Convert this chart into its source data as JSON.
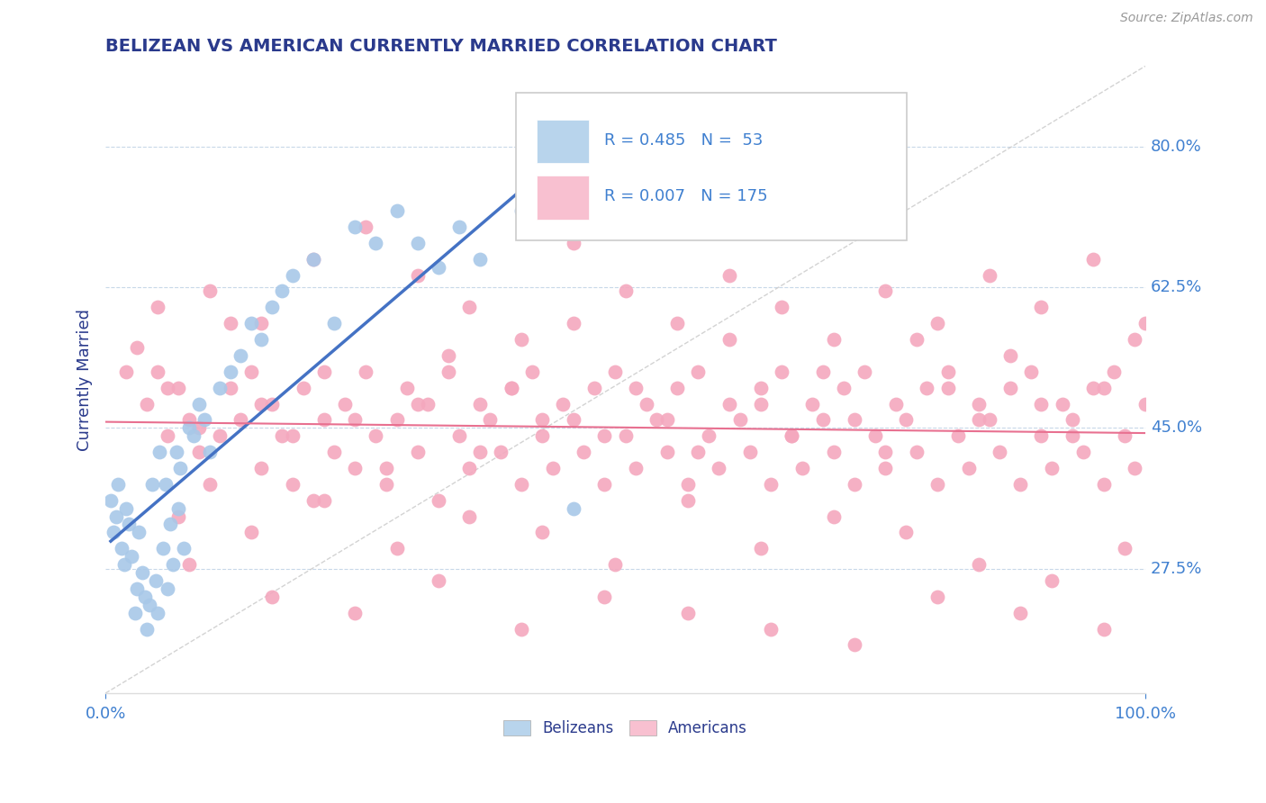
{
  "title": "BELIZEAN VS AMERICAN CURRENTLY MARRIED CORRELATION CHART",
  "source_text": "Source: ZipAtlas.com",
  "ylabel": "Currently Married",
  "x_min": 0.0,
  "x_max": 1.0,
  "y_min": 0.12,
  "y_max": 0.9,
  "yticks": [
    0.275,
    0.45,
    0.625,
    0.8
  ],
  "ytick_labels": [
    "27.5%",
    "45.0%",
    "62.5%",
    "80.0%"
  ],
  "legend_r1": "R = 0.485",
  "legend_n1": "N =  53",
  "legend_r2": "R = 0.007",
  "legend_n2": "N = 175",
  "blue_scatter_color": "#a8c8e8",
  "pink_scatter_color": "#f4a8be",
  "blue_fill": "#b8d4ec",
  "pink_fill": "#f8c0d0",
  "blue_line_color": "#4472c4",
  "pink_line_color": "#e87090",
  "ref_line_color": "#c8c8c8",
  "title_color": "#2a3a8c",
  "tick_color": "#4080d0",
  "ylabel_color": "#2a3a8c",
  "bg_color": "#ffffff",
  "grid_color": "#c8d8e8",
  "belizean_x": [
    0.005,
    0.008,
    0.01,
    0.012,
    0.015,
    0.018,
    0.02,
    0.022,
    0.025,
    0.028,
    0.03,
    0.032,
    0.035,
    0.038,
    0.04,
    0.042,
    0.045,
    0.048,
    0.05,
    0.052,
    0.055,
    0.058,
    0.06,
    0.062,
    0.065,
    0.068,
    0.07,
    0.072,
    0.075,
    0.08,
    0.085,
    0.09,
    0.095,
    0.1,
    0.11,
    0.12,
    0.13,
    0.14,
    0.15,
    0.16,
    0.17,
    0.18,
    0.2,
    0.22,
    0.24,
    0.26,
    0.28,
    0.3,
    0.32,
    0.34,
    0.36,
    0.4,
    0.45
  ],
  "belizean_y": [
    0.36,
    0.32,
    0.34,
    0.38,
    0.3,
    0.28,
    0.35,
    0.33,
    0.29,
    0.22,
    0.25,
    0.32,
    0.27,
    0.24,
    0.2,
    0.23,
    0.38,
    0.26,
    0.22,
    0.42,
    0.3,
    0.38,
    0.25,
    0.33,
    0.28,
    0.42,
    0.35,
    0.4,
    0.3,
    0.45,
    0.44,
    0.48,
    0.46,
    0.42,
    0.5,
    0.52,
    0.54,
    0.58,
    0.56,
    0.6,
    0.62,
    0.64,
    0.66,
    0.58,
    0.7,
    0.68,
    0.72,
    0.68,
    0.65,
    0.7,
    0.66,
    0.72,
    0.35
  ],
  "american_x": [
    0.02,
    0.04,
    0.05,
    0.06,
    0.07,
    0.08,
    0.09,
    0.1,
    0.11,
    0.12,
    0.13,
    0.14,
    0.15,
    0.16,
    0.17,
    0.18,
    0.19,
    0.2,
    0.21,
    0.22,
    0.23,
    0.24,
    0.25,
    0.26,
    0.27,
    0.28,
    0.29,
    0.3,
    0.31,
    0.32,
    0.33,
    0.34,
    0.35,
    0.36,
    0.37,
    0.38,
    0.39,
    0.4,
    0.41,
    0.42,
    0.43,
    0.44,
    0.45,
    0.46,
    0.47,
    0.48,
    0.49,
    0.5,
    0.51,
    0.52,
    0.53,
    0.54,
    0.55,
    0.56,
    0.57,
    0.58,
    0.59,
    0.6,
    0.61,
    0.62,
    0.63,
    0.64,
    0.65,
    0.66,
    0.67,
    0.68,
    0.69,
    0.7,
    0.71,
    0.72,
    0.73,
    0.74,
    0.75,
    0.76,
    0.77,
    0.78,
    0.79,
    0.8,
    0.81,
    0.82,
    0.83,
    0.84,
    0.85,
    0.86,
    0.87,
    0.88,
    0.89,
    0.9,
    0.91,
    0.92,
    0.93,
    0.94,
    0.95,
    0.96,
    0.97,
    0.98,
    0.99,
    1.0,
    0.03,
    0.06,
    0.09,
    0.12,
    0.15,
    0.18,
    0.21,
    0.24,
    0.27,
    0.3,
    0.33,
    0.36,
    0.39,
    0.42,
    0.45,
    0.48,
    0.51,
    0.54,
    0.57,
    0.6,
    0.63,
    0.66,
    0.69,
    0.72,
    0.75,
    0.78,
    0.81,
    0.84,
    0.87,
    0.9,
    0.93,
    0.96,
    0.99,
    0.05,
    0.1,
    0.15,
    0.2,
    0.25,
    0.3,
    0.35,
    0.4,
    0.45,
    0.5,
    0.55,
    0.6,
    0.65,
    0.7,
    0.75,
    0.8,
    0.85,
    0.9,
    0.95,
    1.0,
    0.07,
    0.14,
    0.21,
    0.28,
    0.35,
    0.42,
    0.49,
    0.56,
    0.63,
    0.7,
    0.77,
    0.84,
    0.91,
    0.98,
    0.08,
    0.16,
    0.24,
    0.32,
    0.4,
    0.48,
    0.56,
    0.64,
    0.72,
    0.8,
    0.88,
    0.96
  ],
  "american_y": [
    0.52,
    0.48,
    0.52,
    0.44,
    0.5,
    0.46,
    0.42,
    0.38,
    0.44,
    0.5,
    0.46,
    0.52,
    0.4,
    0.48,
    0.44,
    0.38,
    0.5,
    0.36,
    0.46,
    0.42,
    0.48,
    0.4,
    0.52,
    0.44,
    0.38,
    0.46,
    0.5,
    0.42,
    0.48,
    0.36,
    0.52,
    0.44,
    0.4,
    0.48,
    0.46,
    0.42,
    0.5,
    0.38,
    0.52,
    0.44,
    0.4,
    0.48,
    0.46,
    0.42,
    0.5,
    0.38,
    0.52,
    0.44,
    0.4,
    0.48,
    0.46,
    0.42,
    0.5,
    0.38,
    0.52,
    0.44,
    0.4,
    0.48,
    0.46,
    0.42,
    0.5,
    0.38,
    0.52,
    0.44,
    0.4,
    0.48,
    0.46,
    0.42,
    0.5,
    0.38,
    0.52,
    0.44,
    0.4,
    0.48,
    0.46,
    0.42,
    0.5,
    0.38,
    0.52,
    0.44,
    0.4,
    0.48,
    0.46,
    0.42,
    0.5,
    0.38,
    0.52,
    0.44,
    0.4,
    0.48,
    0.46,
    0.42,
    0.5,
    0.38,
    0.52,
    0.44,
    0.4,
    0.48,
    0.55,
    0.5,
    0.45,
    0.58,
    0.48,
    0.44,
    0.52,
    0.46,
    0.4,
    0.48,
    0.54,
    0.42,
    0.5,
    0.46,
    0.58,
    0.44,
    0.5,
    0.46,
    0.42,
    0.56,
    0.48,
    0.44,
    0.52,
    0.46,
    0.42,
    0.56,
    0.5,
    0.46,
    0.54,
    0.48,
    0.44,
    0.5,
    0.56,
    0.6,
    0.62,
    0.58,
    0.66,
    0.7,
    0.64,
    0.6,
    0.56,
    0.68,
    0.62,
    0.58,
    0.64,
    0.6,
    0.56,
    0.62,
    0.58,
    0.64,
    0.6,
    0.66,
    0.58,
    0.34,
    0.32,
    0.36,
    0.3,
    0.34,
    0.32,
    0.28,
    0.36,
    0.3,
    0.34,
    0.32,
    0.28,
    0.26,
    0.3,
    0.28,
    0.24,
    0.22,
    0.26,
    0.2,
    0.24,
    0.22,
    0.2,
    0.18,
    0.24,
    0.22,
    0.2
  ]
}
